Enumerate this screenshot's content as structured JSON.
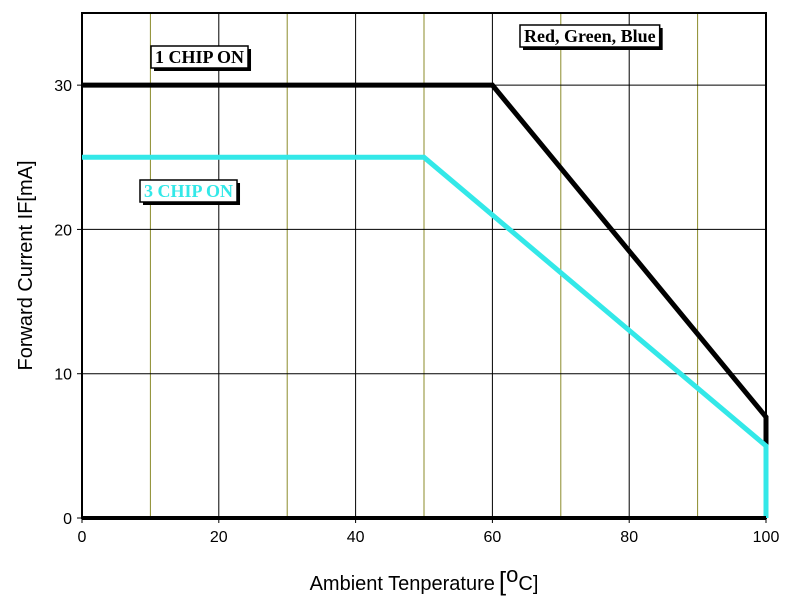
{
  "chart_data": {
    "type": "line",
    "xlabel": "Ambient Tenperature",
    "xunit_open": "[",
    "xunit_sup": "o",
    "xunit_rest": "C]",
    "ylabel": "Forward Current IF[mA]",
    "xlim": [
      0,
      100
    ],
    "ylim": [
      0,
      35
    ],
    "xticks": [
      "0",
      "20",
      "40",
      "60",
      "80",
      "100"
    ],
    "yticks": [
      "0",
      "10",
      "20",
      "30"
    ],
    "x_minor_grid": [
      10,
      30,
      50,
      70,
      90
    ],
    "grid": true,
    "series": [
      {
        "name": "1 CHIP ON",
        "color": "#000000",
        "points": [
          [
            0,
            30
          ],
          [
            60,
            30
          ],
          [
            100,
            7
          ],
          [
            100,
            0
          ]
        ]
      },
      {
        "name": "3 CHIP ON",
        "color": "#33e8e8",
        "points": [
          [
            0,
            25
          ],
          [
            50,
            25
          ],
          [
            100,
            5
          ],
          [
            100,
            0
          ]
        ]
      }
    ],
    "annotation": "Red, Green, Blue",
    "colors": {
      "major_grid": "#000000",
      "minor_grid": "#8b8b2a"
    }
  }
}
